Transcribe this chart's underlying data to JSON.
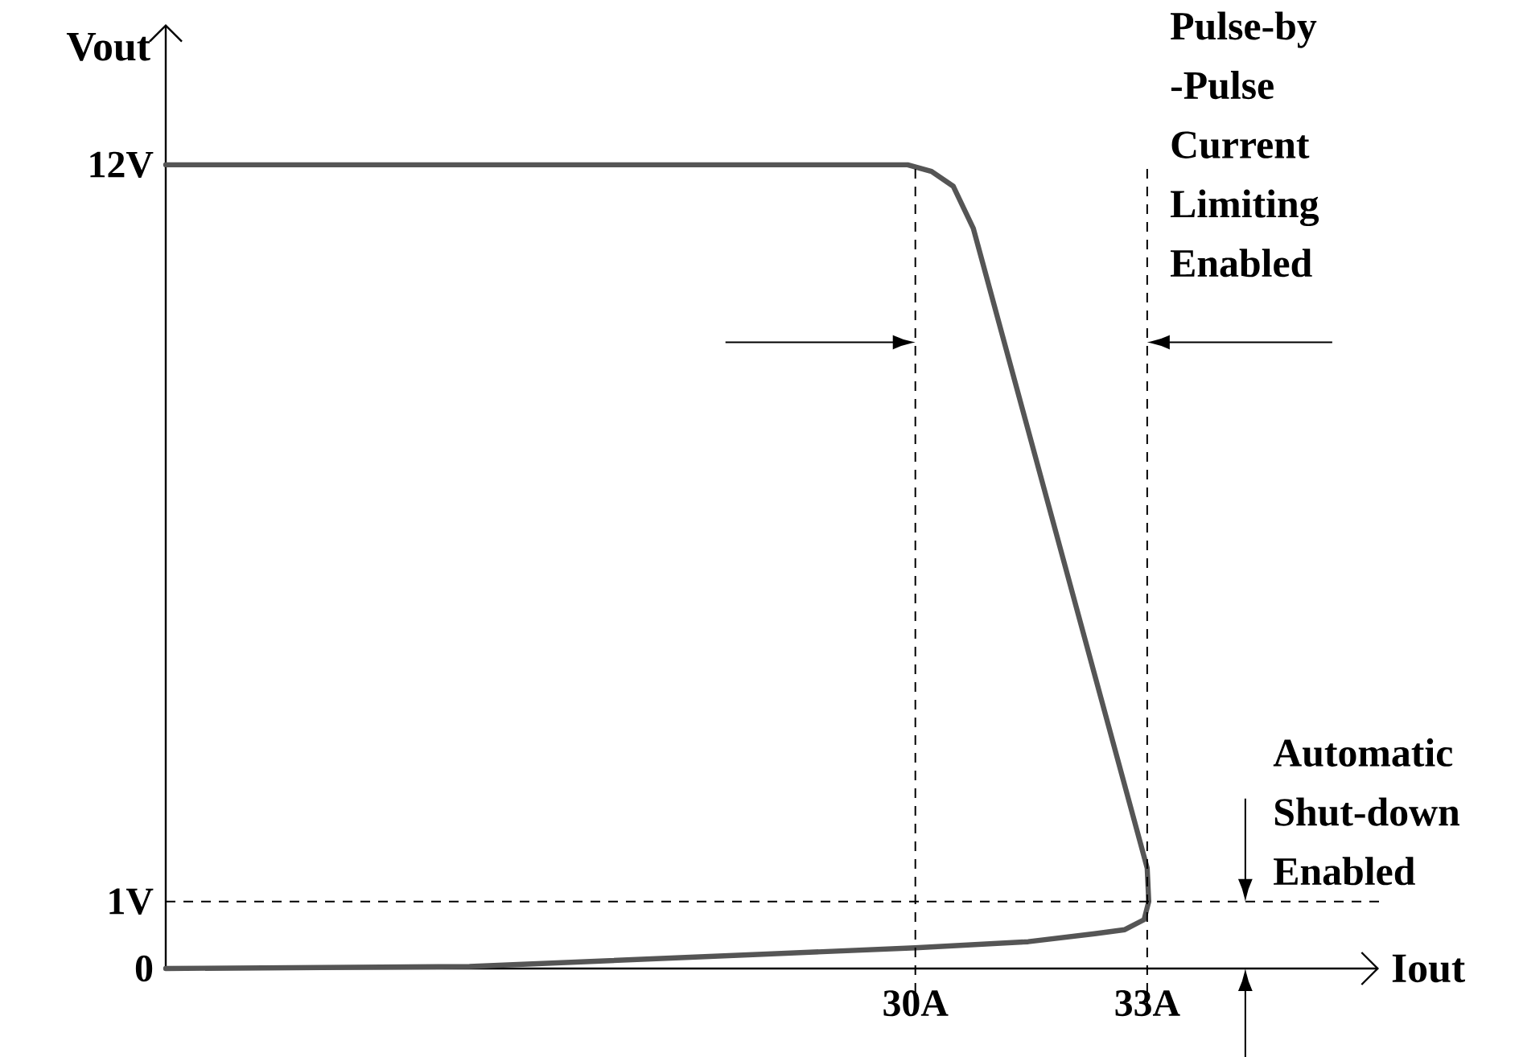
{
  "chart_data": {
    "type": "line",
    "xlabel": "Iout",
    "ylabel": "Vout",
    "series": [
      {
        "color": "#555555",
        "line_style": "solid",
        "x": [
          20.3,
          29.9,
          30.21,
          30.49,
          30.75,
          33.0,
          33.02,
          32.96,
          32.71,
          32.32,
          31.46,
          30.0,
          27.96,
          24.23,
          20.3
        ],
        "values": [
          12,
          12,
          11.9,
          11.68,
          11.05,
          1.5,
          1.0,
          0.73,
          0.58,
          0.52,
          0.4,
          0.31,
          0.21,
          0.03,
          0
        ]
      }
    ],
    "xlim": [
      20.3,
      36.0
    ],
    "ylim": [
      0,
      14.1
    ],
    "xticks": [
      {
        "value": 30,
        "label": "30A"
      },
      {
        "value": 33,
        "label": "33A"
      }
    ],
    "yticks": [
      0,
      {
        "value": 1,
        "label": "1V"
      },
      {
        "value": 12,
        "label": "12V"
      }
    ],
    "ref_lines": [
      {
        "axis": "x",
        "value": 30,
        "line_style": "dashed"
      },
      {
        "axis": "x",
        "value": 33,
        "line_style": "dashed"
      },
      {
        "axis": "y",
        "value": 1,
        "line_style": "dashed"
      }
    ],
    "annotations": [
      "Pulse-by -Pulse Current Limiting Enabled",
      {
        "text": "Automatic Shut-down Enabled",
        "x": 34.27,
        "y": 1
      }
    ]
  }
}
